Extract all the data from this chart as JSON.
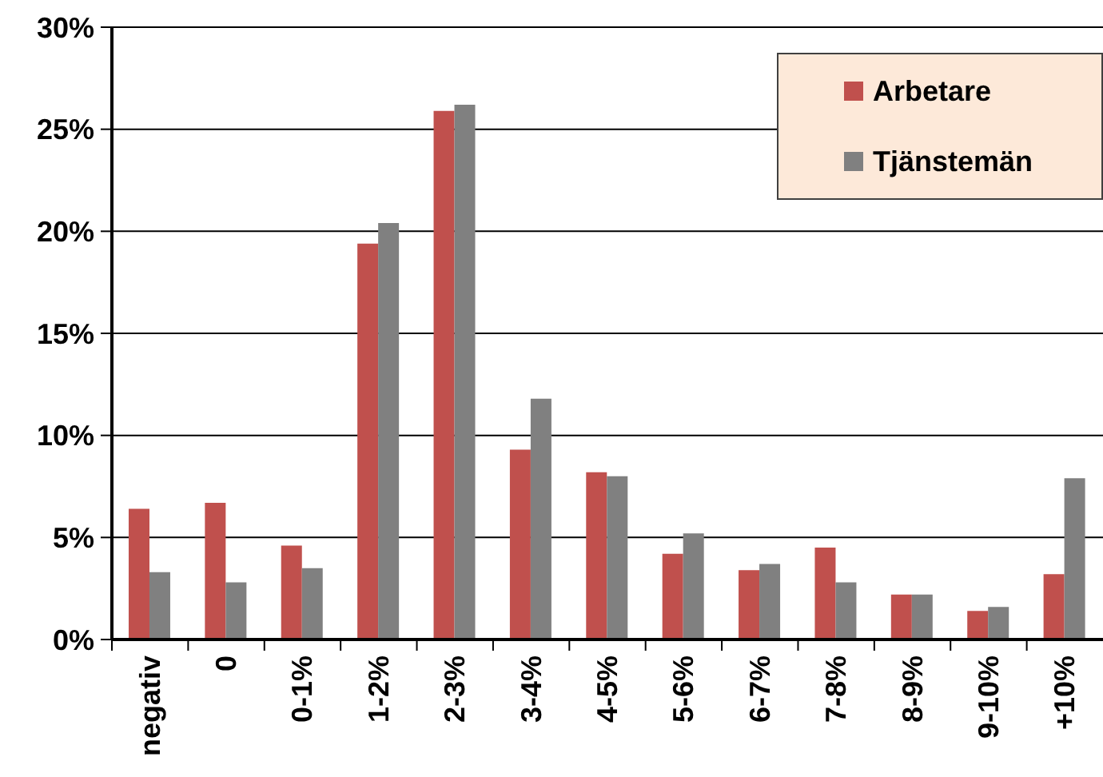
{
  "chart_data": {
    "type": "bar",
    "categories": [
      "negativ",
      "0",
      "0-1%",
      "1-2%",
      "2-3%",
      "3-4%",
      "4-5%",
      "5-6%",
      "6-7%",
      "7-8%",
      "8-9%",
      "9-10%",
      "+10%"
    ],
    "series": [
      {
        "name": "Arbetare",
        "color": "#c0504d",
        "values": [
          6.4,
          6.7,
          4.6,
          19.4,
          25.9,
          9.3,
          8.2,
          4.2,
          3.4,
          4.5,
          2.2,
          1.4,
          3.2
        ]
      },
      {
        "name": "Tjänstemän",
        "color": "#808080",
        "values": [
          3.3,
          2.8,
          3.5,
          20.4,
          26.2,
          11.8,
          8.0,
          5.2,
          3.7,
          2.8,
          2.2,
          1.6,
          7.9
        ]
      }
    ],
    "ylim": [
      0,
      30
    ],
    "yticks": [
      {
        "value": 0,
        "label": "0%"
      },
      {
        "value": 5,
        "label": "5%"
      },
      {
        "value": 10,
        "label": "10%"
      },
      {
        "value": 15,
        "label": "15%"
      },
      {
        "value": 20,
        "label": "20%"
      },
      {
        "value": 25,
        "label": "25%"
      },
      {
        "value": 30,
        "label": "30%"
      }
    ],
    "grid": "y",
    "legend": "top right"
  }
}
